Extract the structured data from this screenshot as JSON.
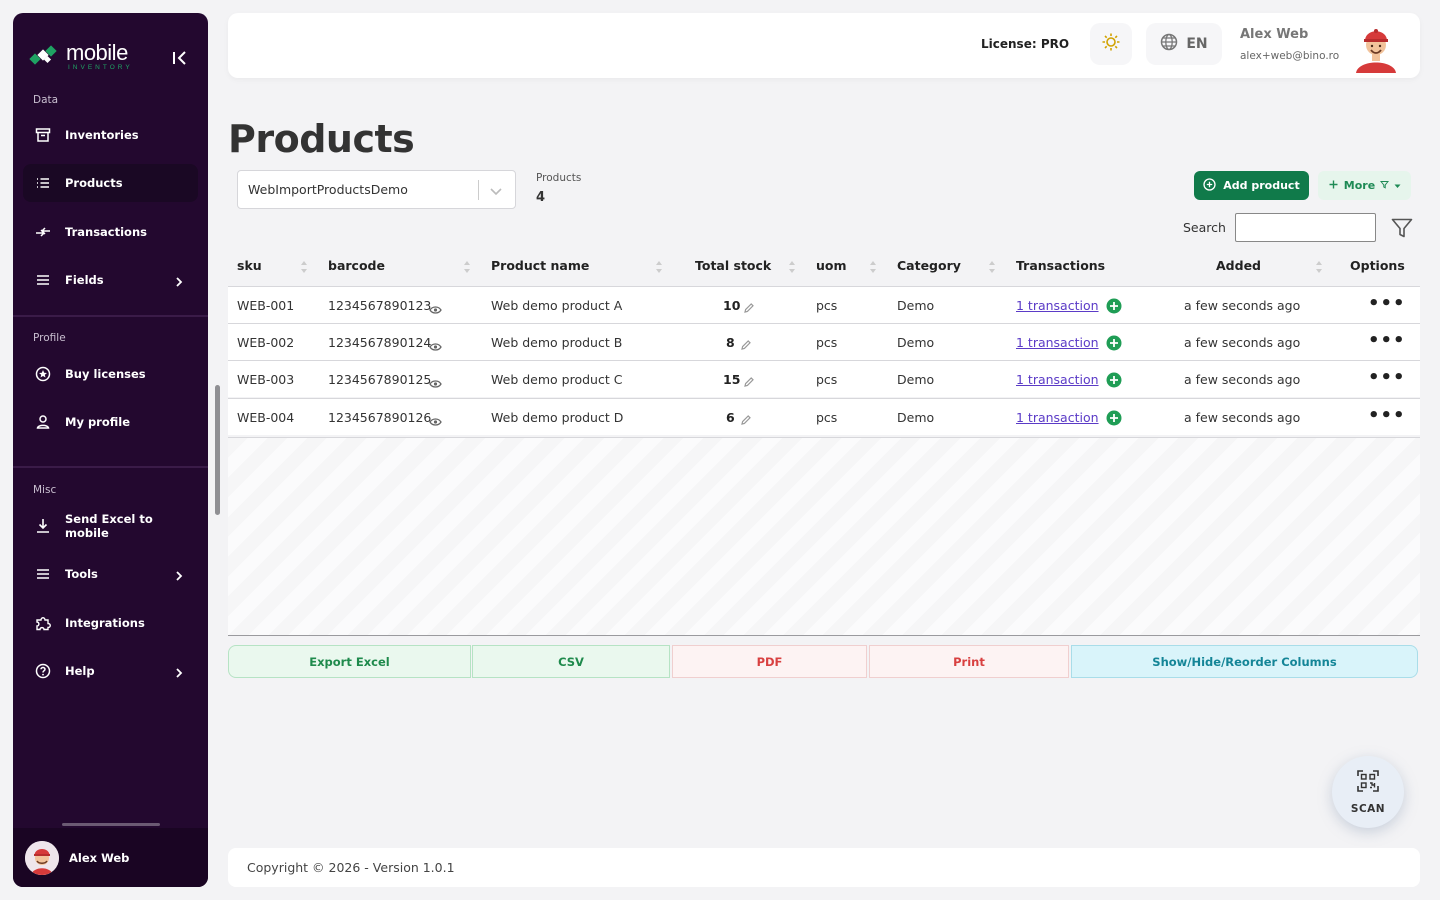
{
  "app": {
    "logo_main": "mobile",
    "logo_sub": "INVENTORY"
  },
  "sidebar": {
    "sections": [
      {
        "label": "Data"
      },
      {
        "label": "Profile"
      },
      {
        "label": "Misc"
      }
    ],
    "items": [
      {
        "label": "Inventories",
        "icon": "archive-icon"
      },
      {
        "label": "Products",
        "icon": "list-icon"
      },
      {
        "label": "Transactions",
        "icon": "arrows-icon"
      },
      {
        "label": "Fields",
        "icon": "menu-icon"
      },
      {
        "label": "Buy licenses",
        "icon": "badge-icon"
      },
      {
        "label": "My profile",
        "icon": "user-icon"
      },
      {
        "label": "Send Excel to mobile",
        "icon": "download-icon"
      },
      {
        "label": "Tools",
        "icon": "menu-icon"
      },
      {
        "label": "Integrations",
        "icon": "puzzle-icon"
      },
      {
        "label": "Help",
        "icon": "help-icon"
      }
    ],
    "user": "Alex Web"
  },
  "header": {
    "license": "License: PRO",
    "language": "EN",
    "user_name": "Alex Web",
    "user_email": "alex+web@bino.ro"
  },
  "main": {
    "title": "Products",
    "inventory_select": "WebImportProductsDemo",
    "count_label": "Products",
    "count_value": "4",
    "add_button": "Add product",
    "more_button": "More",
    "search_label": "Search"
  },
  "table": {
    "columns": [
      "sku",
      "barcode",
      "Product name",
      "Total stock",
      "uom",
      "Category",
      "Transactions",
      "Added",
      "Options"
    ],
    "rows": [
      {
        "sku": "WEB-001",
        "barcode": "1234567890123",
        "name": "Web demo product A",
        "stock": "10",
        "uom": "pcs",
        "category": "Demo",
        "transactions": "1 transaction",
        "added": "a few seconds ago"
      },
      {
        "sku": "WEB-002",
        "barcode": "1234567890124",
        "name": "Web demo product B",
        "stock": "8",
        "uom": "pcs",
        "category": "Demo",
        "transactions": "1 transaction",
        "added": "a few seconds ago"
      },
      {
        "sku": "WEB-003",
        "barcode": "1234567890125",
        "name": "Web demo product C",
        "stock": "15",
        "uom": "pcs",
        "category": "Demo",
        "transactions": "1 transaction",
        "added": "a few seconds ago"
      },
      {
        "sku": "WEB-004",
        "barcode": "1234567890126",
        "name": "Web demo product D",
        "stock": "6",
        "uom": "pcs",
        "category": "Demo",
        "transactions": "1 transaction",
        "added": "a few seconds ago"
      }
    ],
    "options_glyph": "•••"
  },
  "export": {
    "excel": "Export Excel",
    "csv": "CSV",
    "pdf": "PDF",
    "print": "Print",
    "columns": "Show/Hide/Reorder Columns"
  },
  "footer": {
    "copyright": "Copyright © 2026 - Version 1.0.1"
  },
  "scan": {
    "label": "SCAN"
  },
  "colors": {
    "sidebar": "#23082f",
    "brand_green": "#107a4a",
    "link": "#5b3bc7"
  }
}
